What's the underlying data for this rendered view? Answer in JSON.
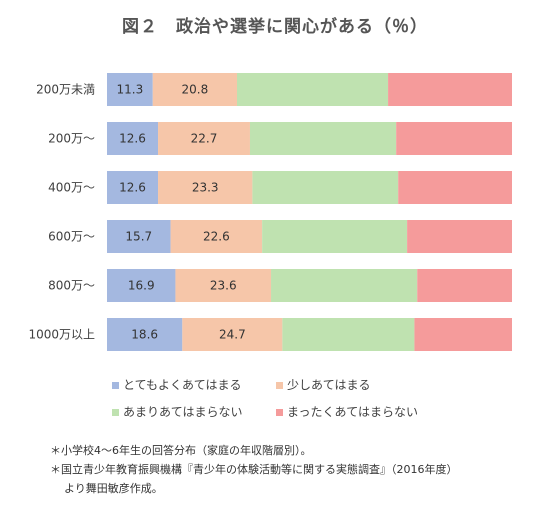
{
  "title": "図２　政治や選挙に関心がある（％）",
  "chart_data": {
    "type": "bar",
    "orientation": "horizontal",
    "stacked": true,
    "normalized": true,
    "title": "図２　政治や選挙に関心がある（％）",
    "categories": [
      "200万未満",
      "200万〜",
      "400万〜",
      "600万〜",
      "800万〜",
      "1000万以上"
    ],
    "series": [
      {
        "name": "とてもよくあてはまる",
        "color": "#a4b8e0",
        "values": [
          11.3,
          12.6,
          12.6,
          15.7,
          16.9,
          18.6
        ],
        "labeled": true
      },
      {
        "name": "少しあてはまる",
        "color": "#f6c6a9",
        "values": [
          20.8,
          22.7,
          23.3,
          22.6,
          23.6,
          24.7
        ],
        "labeled": true
      },
      {
        "name": "あまりあてはまらない",
        "color": "#bfe2b0",
        "values": [
          37.3,
          36.1,
          36.0,
          35.8,
          36.1,
          32.6
        ],
        "labeled": false
      },
      {
        "name": "まったくあてはまらない",
        "color": "#f59b9b",
        "values": [
          30.6,
          28.6,
          28.1,
          25.9,
          23.4,
          24.1
        ],
        "labeled": false
      }
    ],
    "legend_position": "bottom",
    "grid": false
  },
  "notes": [
    "＊小学校4〜6年生の回答分布（家庭の年収階層別）。",
    "＊国立青少年教育振興機構『青少年の体験活動等に関する実態調査』（2016年度）",
    "より舞田敏彦作成。"
  ]
}
